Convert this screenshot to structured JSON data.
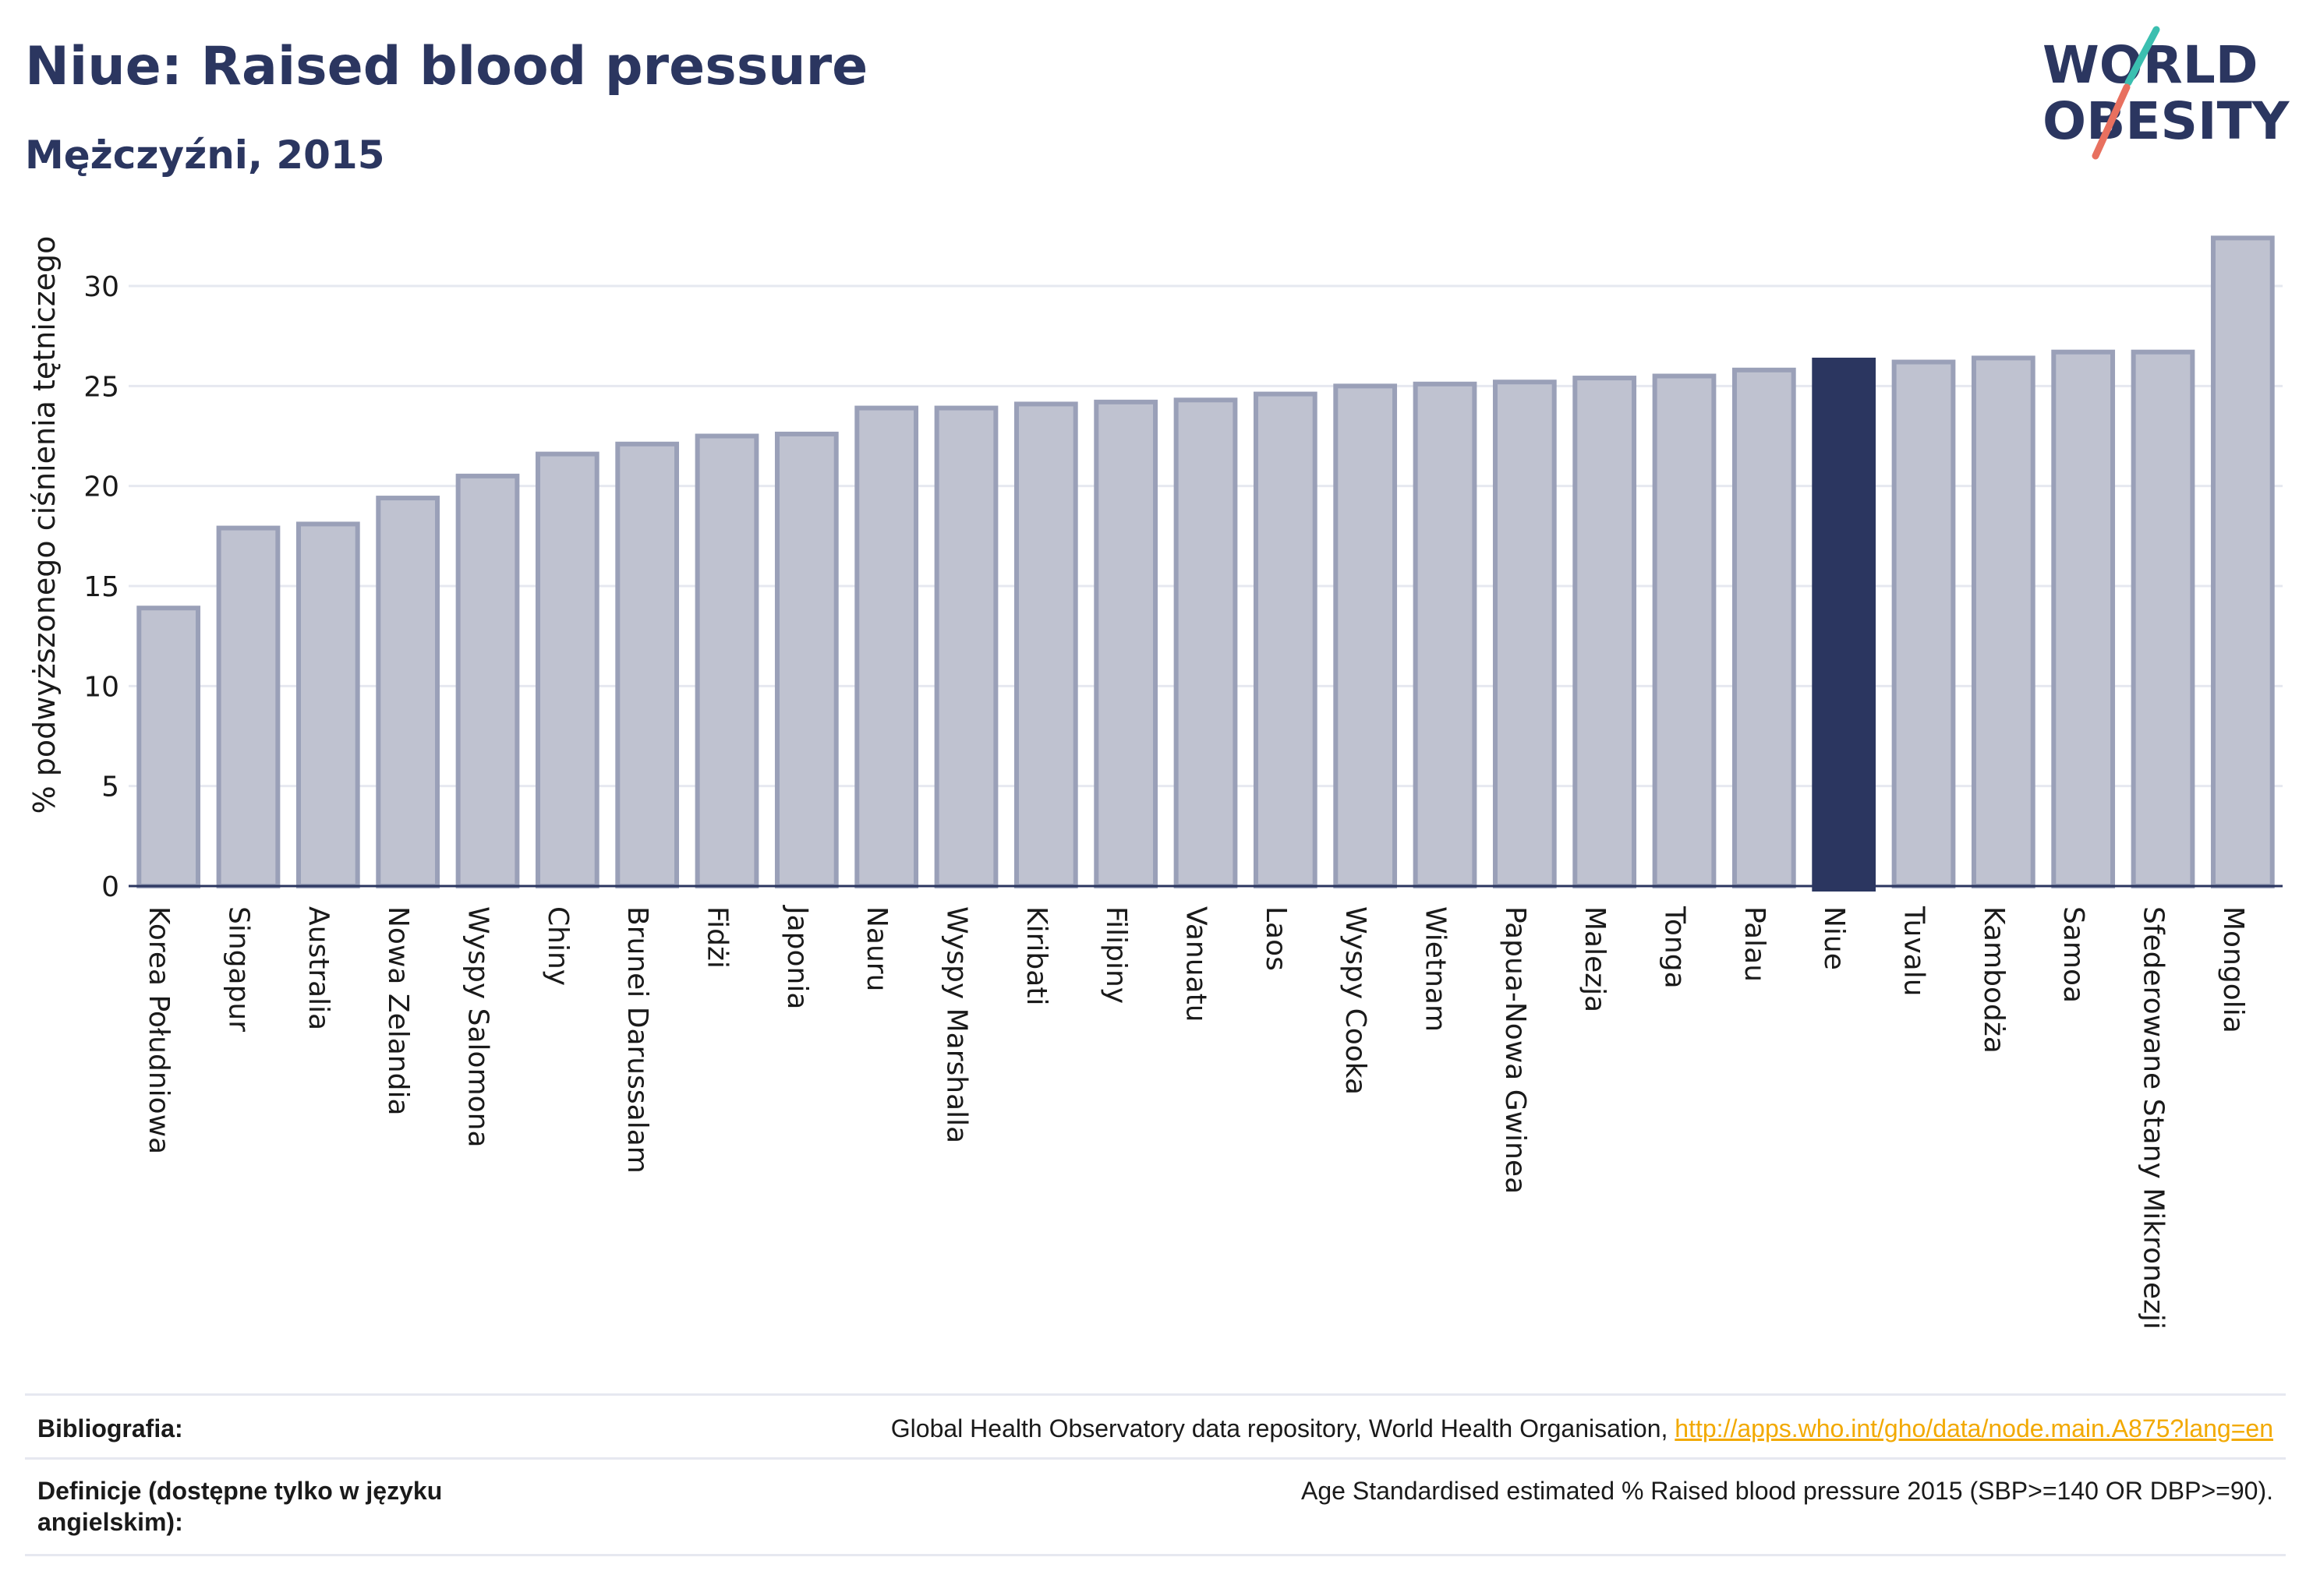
{
  "header": {
    "title": "Niue: Raised blood pressure",
    "subtitle": "Mężczyźni, 2015"
  },
  "logo": {
    "line1": "WORLD",
    "line2": "OBESITY",
    "name": "world-obesity-logo"
  },
  "colors": {
    "bar": "#bfc2d0",
    "bar_stroke": "#9aa0b8",
    "highlight": "#2b3660",
    "grid": "#e6e8f0",
    "axis": "#2b3660",
    "link": "#f2a900"
  },
  "chart_data": {
    "type": "bar",
    "ylabel": "% podwyższonego ciśnienia tętniczego",
    "ylim": [
      0,
      33
    ],
    "yticks": [
      0,
      5,
      10,
      15,
      20,
      25,
      30
    ],
    "grid": true,
    "highlight": "Niue",
    "categories": [
      "Korea Południowa",
      "Singapur",
      "Australia",
      "Nowa Zelandia",
      "Wyspy Salomona",
      "Chiny",
      "Brunei Darussalam",
      "Fidżi",
      "Japonia",
      "Nauru",
      "Wyspy Marshalla",
      "Kiribati",
      "Filipiny",
      "Vanuatu",
      "Laos",
      "Wyspy Cooka",
      "Wietnam",
      "Papua-Nowa Gwinea",
      "Malezja",
      "Tonga",
      "Palau",
      "Niue",
      "Tuvalu",
      "Kambodża",
      "Samoa",
      "Sfederowane Stany Mikronezji",
      "Mongolia"
    ],
    "values": [
      13.9,
      17.9,
      18.1,
      19.4,
      20.5,
      21.6,
      22.1,
      22.5,
      22.6,
      23.9,
      23.9,
      24.1,
      24.2,
      24.3,
      24.6,
      25.0,
      25.1,
      25.2,
      25.4,
      25.5,
      25.8,
      26.3,
      26.2,
      26.4,
      26.7,
      26.7,
      32.4
    ]
  },
  "footer": {
    "bibliography_label": "Bibliografia:",
    "bibliography_text": "Global Health Observatory data repository, World Health Organisation, ",
    "bibliography_link": "http://apps.who.int/gho/data/node.main.A875?lang=en",
    "definitions_label": "Definicje (dostępne tylko w języku angielskim):",
    "definitions_text": "Age Standardised estimated % Raised blood pressure 2015 (SBP>=140 OR DBP>=90)."
  }
}
